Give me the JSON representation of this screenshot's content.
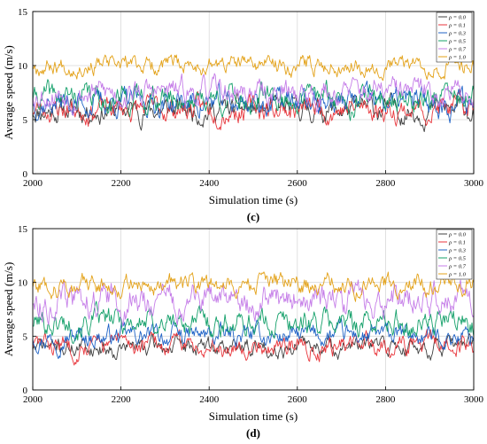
{
  "chart_data": [
    {
      "type": "line",
      "panel_label": "(c)",
      "xlabel": "Simulation time (s)",
      "ylabel": "Average speed (m/s)",
      "xlim": [
        2000,
        3000
      ],
      "ylim": [
        0,
        15
      ],
      "xticks": [
        2000,
        2200,
        2400,
        2600,
        2800,
        3000
      ],
      "yticks": [
        0,
        5,
        10,
        15
      ],
      "xtick_labels": [
        "2000",
        "2200",
        "2400",
        "2600",
        "2800",
        "3000"
      ],
      "ytick_labels": [
        "0",
        "5",
        "10",
        "15"
      ],
      "grid": true,
      "legend_position": "top-right",
      "series": [
        {
          "name": "ρ = 0.0",
          "color": "#404040",
          "mean": 5.9,
          "amp": 0.9,
          "min": 3.8,
          "max": 8.0,
          "seed": 11
        },
        {
          "name": "ρ = 0.1",
          "color": "#e8363c",
          "mean": 6.0,
          "amp": 0.9,
          "min": 3.9,
          "max": 8.3,
          "seed": 23
        },
        {
          "name": "ρ = 0.3",
          "color": "#1f63c6",
          "mean": 6.6,
          "amp": 1.0,
          "min": 4.2,
          "max": 9.0,
          "seed": 37
        },
        {
          "name": "ρ = 0.5",
          "color": "#14a06a",
          "mean": 7.0,
          "amp": 1.0,
          "min": 4.8,
          "max": 9.6,
          "seed": 41
        },
        {
          "name": "ρ = 0.7",
          "color": "#c57de8",
          "mean": 7.5,
          "amp": 1.0,
          "min": 5.2,
          "max": 10.0,
          "seed": 53
        },
        {
          "name": "ρ = 1.0",
          "color": "#e3a21a",
          "mean": 10.1,
          "amp": 0.7,
          "min": 8.2,
          "max": 11.0,
          "seed": 67
        }
      ]
    },
    {
      "type": "line",
      "panel_label": "(d)",
      "xlabel": "Simulation time (s)",
      "ylabel": "Average speed (m/s)",
      "xlim": [
        2000,
        3000
      ],
      "ylim": [
        0,
        15
      ],
      "xticks": [
        2000,
        2200,
        2400,
        2600,
        2800,
        3000
      ],
      "yticks": [
        0,
        5,
        10,
        15
      ],
      "xtick_labels": [
        "2000",
        "2200",
        "2400",
        "2600",
        "2800",
        "3000"
      ],
      "ytick_labels": [
        "0",
        "5",
        "10",
        "15"
      ],
      "grid": true,
      "legend_position": "top-right",
      "series": [
        {
          "name": "ρ = 0.0",
          "color": "#404040",
          "mean": 4.0,
          "amp": 0.7,
          "min": 2.0,
          "max": 6.0,
          "seed": 71
        },
        {
          "name": "ρ = 0.1",
          "color": "#e8363c",
          "mean": 4.2,
          "amp": 0.8,
          "min": 2.3,
          "max": 6.2,
          "seed": 83
        },
        {
          "name": "ρ = 0.3",
          "color": "#1f63c6",
          "mean": 5.0,
          "amp": 0.8,
          "min": 2.8,
          "max": 7.0,
          "seed": 97
        },
        {
          "name": "ρ = 0.5",
          "color": "#14a06a",
          "mean": 6.3,
          "amp": 1.0,
          "min": 4.0,
          "max": 9.5,
          "seed": 101
        },
        {
          "name": "ρ = 0.7",
          "color": "#c57de8",
          "mean": 8.3,
          "amp": 1.2,
          "min": 5.5,
          "max": 10.5,
          "seed": 113
        },
        {
          "name": "ρ = 1.0",
          "color": "#e3a21a",
          "mean": 9.8,
          "amp": 0.8,
          "min": 7.2,
          "max": 11.0,
          "seed": 127
        }
      ]
    }
  ]
}
